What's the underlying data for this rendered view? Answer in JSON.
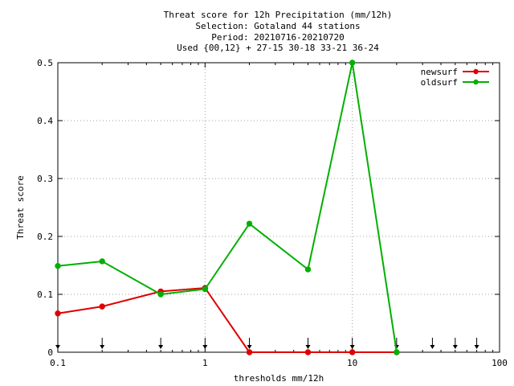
{
  "chart_data": {
    "type": "line",
    "title_lines": [
      "Threat score  for 12h Precipitation (mm/12h)",
      "Selection: Gotaland     44 stations",
      "Period: 20210716-20210720",
      "Used {00,12} + 27-15 30-18 33-21 36-24"
    ],
    "xlabel": "thresholds mm/12h",
    "ylabel": "Threat score",
    "x_scale": "log",
    "xlim": [
      0.1,
      100
    ],
    "ylim": [
      0,
      0.5
    ],
    "x_ticks": [
      0.1,
      1,
      10,
      100
    ],
    "x_tick_labels": [
      "0.1",
      "1",
      "10",
      "100"
    ],
    "y_ticks": [
      0,
      0.1,
      0.2,
      0.3,
      0.4,
      0.5
    ],
    "y_tick_labels": [
      "0",
      "0.1",
      "0.2",
      "0.3",
      "0.4",
      "0.5"
    ],
    "grid": true,
    "legend_position": "top-right",
    "threshold_markers": [
      0.1,
      0.2,
      0.5,
      1,
      2,
      5,
      10,
      20,
      35,
      50,
      70
    ],
    "series": [
      {
        "name": "newsurf",
        "color": "#e00000",
        "x": [
          0.1,
          0.2,
          0.5,
          1,
          2,
          5,
          10,
          20
        ],
        "y": [
          0.067,
          0.079,
          0.105,
          0.111,
          0.0,
          0.0,
          0.0,
          0.0
        ]
      },
      {
        "name": "oldsurf",
        "color": "#00b000",
        "x": [
          0.1,
          0.2,
          0.5,
          1,
          2,
          5,
          10,
          20
        ],
        "y": [
          0.149,
          0.157,
          0.1,
          0.109,
          0.222,
          0.143,
          0.5,
          0.0
        ]
      }
    ]
  }
}
